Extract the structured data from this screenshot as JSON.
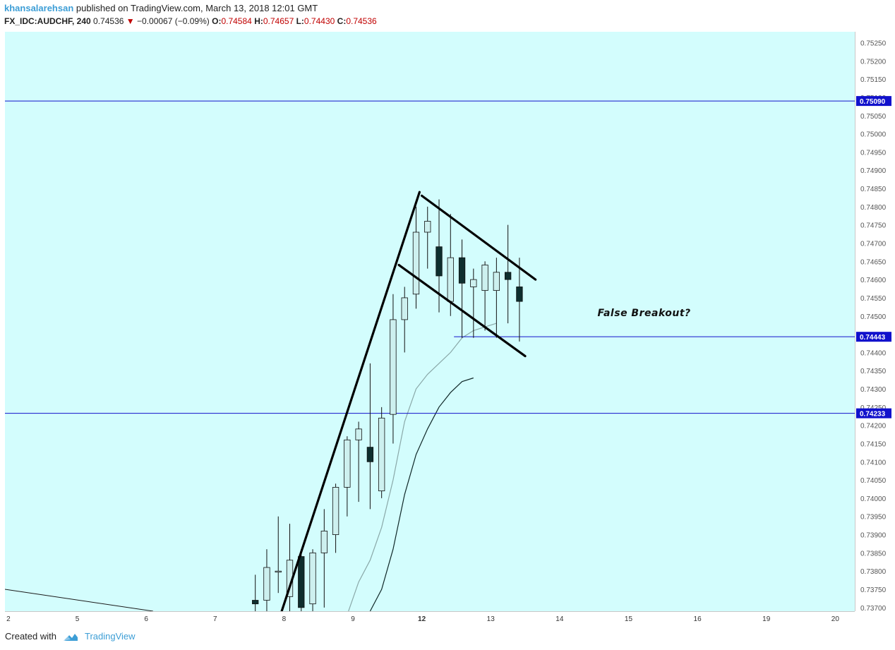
{
  "header": {
    "author": "khansalarehsan",
    "published": "published on TradingView.com, March 13, 2018 12:01 GMT",
    "symbol": "FX_IDC:AUDCHF, 240",
    "last": "0.74536",
    "change_arrow": "▼",
    "change": "−0.00067 (−0.09%)",
    "o_label": "O:",
    "o_value": "0.74584",
    "h_label": "H:",
    "h_value": "0.74657",
    "l_label": "L:",
    "l_value": "0.74430",
    "c_label": "C:",
    "c_value": "0.74536"
  },
  "footer": {
    "created_with": "Created with",
    "brand": "TradingView"
  },
  "colors": {
    "plot_bg": "#d3fdfd",
    "bull_fill": "#cdf0ef",
    "bear_fill": "#0e2e2e",
    "hline": "#1111cc",
    "label_bg": "#1111cc",
    "ma_fast": "#8aa8a8",
    "ma_slow": "#102828",
    "trendline": "#000000"
  },
  "chart_data": {
    "type": "candlestick",
    "symbol": "FX_IDC:AUDCHF",
    "interval": "240",
    "y_ticks": [
      "0.73700",
      "0.73750",
      "0.73800",
      "0.73850",
      "0.73900",
      "0.73950",
      "0.74000",
      "0.74050",
      "0.74100",
      "0.74150",
      "0.74200",
      "0.74250",
      "0.74300",
      "0.74350",
      "0.74400",
      "0.74450",
      "0.74500",
      "0.74550",
      "0.74600",
      "0.74650",
      "0.74700",
      "0.74750",
      "0.74800",
      "0.74850",
      "0.74900",
      "0.74950",
      "0.75000",
      "0.75050",
      "0.75100",
      "0.75150",
      "0.75200",
      "0.75250"
    ],
    "ylim": [
      0.7369,
      0.7528
    ],
    "x_ticks": [
      {
        "label": "2",
        "x": -0.5
      },
      {
        "label": "5",
        "x": 5.5
      },
      {
        "label": "6",
        "x": 11.5
      },
      {
        "label": "7",
        "x": 17.5
      },
      {
        "label": "8",
        "x": 23.5
      },
      {
        "label": "9",
        "x": 29.5
      },
      {
        "label": "12",
        "x": 35.5
      },
      {
        "label": "13",
        "x": 41.5
      },
      {
        "label": "14",
        "x": 47.5
      },
      {
        "label": "15",
        "x": 53.5
      },
      {
        "label": "16",
        "x": 59.5
      },
      {
        "label": "19",
        "x": 65.5
      },
      {
        "label": "20",
        "x": 71.5
      }
    ],
    "xlim": [
      -0.8,
      73.2
    ],
    "candles": [
      {
        "i": 21,
        "o": 0.7372,
        "h": 0.7379,
        "l": 0.7367,
        "c": 0.7371
      },
      {
        "i": 22,
        "o": 0.7372,
        "h": 0.7386,
        "l": 0.7367,
        "c": 0.7381
      },
      {
        "i": 23,
        "o": 0.738,
        "h": 0.7395,
        "l": 0.7374,
        "c": 0.738
      },
      {
        "i": 24,
        "o": 0.7373,
        "h": 0.7393,
        "l": 0.7367,
        "c": 0.7383
      },
      {
        "i": 25,
        "o": 0.7384,
        "h": 0.7386,
        "l": 0.7367,
        "c": 0.737
      },
      {
        "i": 26,
        "o": 0.7371,
        "h": 0.7386,
        "l": 0.7367,
        "c": 0.7385
      },
      {
        "i": 27,
        "o": 0.7385,
        "h": 0.7397,
        "l": 0.737,
        "c": 0.7391
      },
      {
        "i": 28,
        "o": 0.739,
        "h": 0.7404,
        "l": 0.7385,
        "c": 0.7403
      },
      {
        "i": 29,
        "o": 0.7403,
        "h": 0.7417,
        "l": 0.7395,
        "c": 0.7416
      },
      {
        "i": 30,
        "o": 0.7416,
        "h": 0.7421,
        "l": 0.7399,
        "c": 0.7419
      },
      {
        "i": 31,
        "o": 0.7414,
        "h": 0.7437,
        "l": 0.7397,
        "c": 0.741
      },
      {
        "i": 32,
        "o": 0.7402,
        "h": 0.7425,
        "l": 0.74,
        "c": 0.7422
      },
      {
        "i": 33,
        "o": 0.7423,
        "h": 0.7456,
        "l": 0.7415,
        "c": 0.7449
      },
      {
        "i": 34,
        "o": 0.7449,
        "h": 0.7458,
        "l": 0.744,
        "c": 0.7455
      },
      {
        "i": 35,
        "o": 0.7456,
        "h": 0.748,
        "l": 0.7452,
        "c": 0.7473
      },
      {
        "i": 36,
        "o": 0.7473,
        "h": 0.748,
        "l": 0.7463,
        "c": 0.7476
      },
      {
        "i": 37,
        "o": 0.7469,
        "h": 0.7482,
        "l": 0.7451,
        "c": 0.7461
      },
      {
        "i": 38,
        "o": 0.7454,
        "h": 0.7478,
        "l": 0.745,
        "c": 0.7466
      },
      {
        "i": 39,
        "o": 0.7466,
        "h": 0.7471,
        "l": 0.7444,
        "c": 0.7459
      },
      {
        "i": 40,
        "o": 0.7458,
        "h": 0.7463,
        "l": 0.7444,
        "c": 0.746
      },
      {
        "i": 41,
        "o": 0.7457,
        "h": 0.7465,
        "l": 0.7446,
        "c": 0.7464
      },
      {
        "i": 42,
        "o": 0.7457,
        "h": 0.7466,
        "l": 0.7444,
        "c": 0.7462
      },
      {
        "i": 43,
        "o": 0.7462,
        "h": 0.7475,
        "l": 0.7448,
        "c": 0.746
      },
      {
        "i": 44,
        "o": 0.7458,
        "h": 0.7466,
        "l": 0.7443,
        "c": 0.7454
      }
    ],
    "ma_fast": [
      [
        29,
        0.7368
      ],
      [
        30,
        0.7377
      ],
      [
        31,
        0.7383
      ],
      [
        32,
        0.7392
      ],
      [
        33,
        0.7405
      ],
      [
        34,
        0.7421
      ],
      [
        35,
        0.743
      ],
      [
        36,
        0.7434
      ],
      [
        37,
        0.7437
      ],
      [
        38,
        0.744
      ],
      [
        39,
        0.7444
      ],
      [
        40,
        0.7446
      ],
      [
        41,
        0.7447
      ],
      [
        42,
        0.7448
      ]
    ],
    "ma_slow": [
      [
        31,
        0.7369
      ],
      [
        32,
        0.7375
      ],
      [
        33,
        0.7386
      ],
      [
        34,
        0.7401
      ],
      [
        35,
        0.7412
      ],
      [
        36,
        0.7419
      ],
      [
        37,
        0.7425
      ],
      [
        38,
        0.7429
      ],
      [
        39,
        0.7432
      ],
      [
        40,
        0.7433
      ]
    ],
    "ma_tail": [
      [
        -0.8,
        0.7375
      ],
      [
        12.1,
        0.7369
      ]
    ],
    "horizontal_levels": [
      {
        "value": 0.7509,
        "label": "0.75090",
        "from": -0.8
      },
      {
        "value": 0.74443,
        "label": "0.74443",
        "from": 38.3
      },
      {
        "value": 0.74233,
        "label": "0.74233",
        "from": -0.8
      }
    ],
    "trendlines": [
      [
        [
          23.3,
          0.7369
        ],
        [
          35.3,
          0.7484
        ]
      ],
      [
        [
          35.5,
          0.7483
        ],
        [
          45.4,
          0.746
        ]
      ],
      [
        [
          33.5,
          0.7464
        ],
        [
          44.5,
          0.7439
        ]
      ]
    ],
    "annotations": [
      {
        "text": "False Breakout?",
        "x": 50.8,
        "y": 0.745
      }
    ]
  }
}
